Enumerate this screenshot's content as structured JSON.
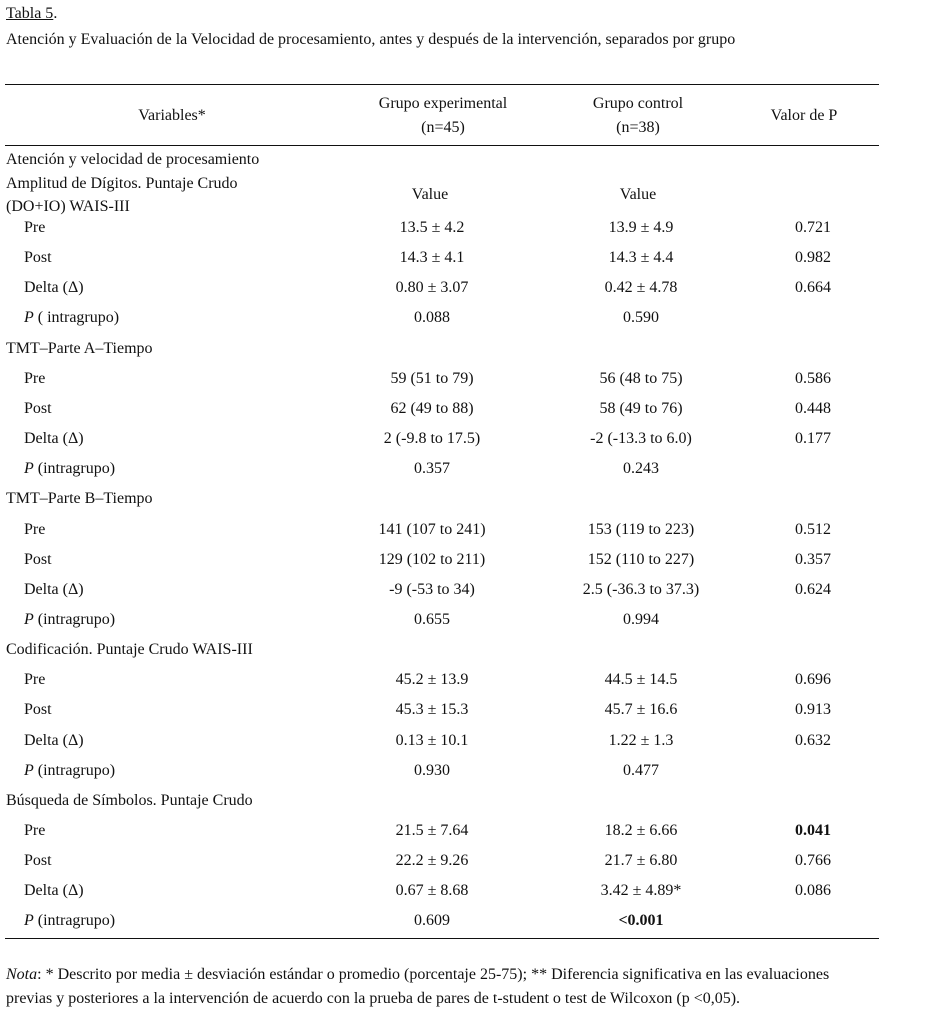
{
  "table_label": "Tabla 5",
  "table_label_suffix": ".",
  "title": "Atención y Evaluación de la Velocidad de procesamiento, antes y después de la intervención, separados por grupo",
  "headers": {
    "variables": "Variables*",
    "exp_line1": "Grupo experimental",
    "exp_line2": "(n=45)",
    "ctrl_line1": "Grupo control",
    "ctrl_line2": "(n=38)",
    "p": "Valor de P"
  },
  "first_block": {
    "line1": "Atención y velocidad de procesamiento",
    "line2": "Amplitud de Dígitos. Puntaje Crudo",
    "line3": "(DO+IO) WAIS-III",
    "exp": "Value",
    "ctrl": "Value"
  },
  "rows": [
    {
      "label": "Pre",
      "exp": "13.5 ± 4.2",
      "ctrl": "13.9 ± 4.9",
      "p": "0.721"
    },
    {
      "label": "Post",
      "exp": "14.3 ± 4.1",
      "ctrl": "14.3 ± 4.4",
      "p": "0.982"
    },
    {
      "label": "Delta (Δ)",
      "exp": "0.80 ± 3.07",
      "ctrl": "0.42 ± 4.78",
      "p": "0.664"
    },
    {
      "italic": "P",
      "label": " ( intragrupo)",
      "exp": "0.088",
      "ctrl": "0.590",
      "p": ""
    },
    {
      "section": "TMT–Parte A–Tiempo"
    },
    {
      "label": "Pre",
      "exp": "59 (51 to 79)",
      "ctrl": "56 (48 to 75)",
      "p": "0.586"
    },
    {
      "label": "Post",
      "exp": "62 (49 to 88)",
      "ctrl": "58 (49 to 76)",
      "p": "0.448"
    },
    {
      "label": "Delta (Δ)",
      "exp": "2 (-9.8 to 17.5)",
      "ctrl": "-2 (-13.3 to 6.0)",
      "p": "0.177"
    },
    {
      "italic": "P",
      "label": " (intragrupo)",
      "exp": "0.357",
      "ctrl": "0.243",
      "p": ""
    },
    {
      "section": "TMT–Parte B–Tiempo"
    },
    {
      "label": "Pre",
      "exp": "141 (107 to 241)",
      "ctrl": "153 (119 to 223)",
      "p": "0.512"
    },
    {
      "label": "Post",
      "exp": "129 (102 to 211)",
      "ctrl": "152 (110 to 227)",
      "p": "0.357"
    },
    {
      "label": "Delta (Δ)",
      "exp": "-9 (-53 to 34)",
      "ctrl": "2.5 (-36.3 to 37.3)",
      "p": "0.624"
    },
    {
      "italic": "P",
      "label": " (intragrupo)",
      "exp": "0.655",
      "ctrl": "0.994",
      "p": ""
    },
    {
      "section": "Codificación. Puntaje Crudo WAIS-III"
    },
    {
      "label": "Pre",
      "exp": "45.2 ± 13.9",
      "ctrl": "44.5 ± 14.5",
      "p": "0.696"
    },
    {
      "label": "Post",
      "exp": "45.3 ± 15.3",
      "ctrl": "45.7 ± 16.6",
      "p": "0.913"
    },
    {
      "label": "Delta (Δ)",
      "exp": "0.13 ± 10.1",
      "ctrl": "1.22 ± 1.3",
      "p": "0.632"
    },
    {
      "italic": "P",
      "label": " (intragrupo)",
      "exp": "0.930",
      "ctrl": "0.477",
      "p": ""
    },
    {
      "section": "Búsqueda de Símbolos. Puntaje Crudo"
    },
    {
      "label": "Pre",
      "exp": "21.5 ± 7.64",
      "ctrl": "18.2 ± 6.66",
      "p": "0.041",
      "bold": [
        "p"
      ]
    },
    {
      "label": "Post",
      "exp": "22.2 ± 9.26",
      "ctrl": "21.7 ± 6.80",
      "p": "0.766"
    },
    {
      "label": "Delta (Δ)",
      "exp": "0.67 ± 8.68",
      "ctrl": "3.42 ± 4.89*",
      "p": "0.086"
    },
    {
      "italic": "P",
      "label": " (intragrupo)",
      "exp": "0.609",
      "ctrl": "<0.001",
      "p": "",
      "bold": [
        "ctrl"
      ]
    }
  ],
  "note": {
    "prefix": "Nota",
    "line1": ": * Descrito por media ± desviación estándar o promedio (porcentaje 25-75); ** Diferencia significativa en las evaluaciones",
    "line2": "previas y posteriores a la intervención de acuerdo con la prueba de pares de t-student o test de Wilcoxon (p <0,05)."
  }
}
